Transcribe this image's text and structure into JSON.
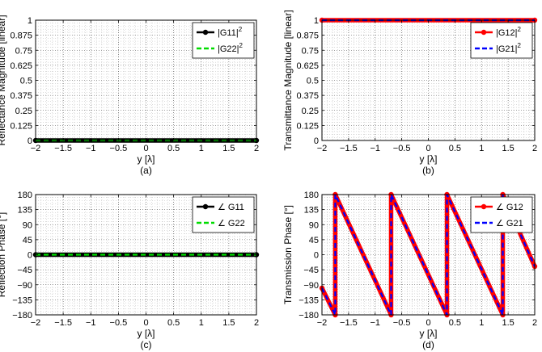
{
  "chart_data": [
    {
      "type": "line",
      "caption": "(a)",
      "xlabel": "y [λ]",
      "ylabel": "Reflectance Magnitude [linear]",
      "xlim": [
        -2,
        2
      ],
      "ylim": [
        0,
        1
      ],
      "xticks": [
        -2,
        -1.5,
        -1,
        -0.5,
        0,
        0.5,
        1,
        1.5,
        2
      ],
      "xtick_labels": [
        "−2",
        "−1.5",
        "−1",
        "−0.5",
        "0",
        "0.5",
        "1",
        "1.5",
        "2"
      ],
      "yticks": [
        0,
        0.125,
        0.25,
        0.375,
        0.5,
        0.625,
        0.75,
        0.875,
        1
      ],
      "ytick_labels": [
        "0",
        "0.125",
        "0.25",
        "0.375",
        "0.5",
        "0.625",
        "0.75",
        "0.875",
        "1"
      ],
      "grid": true,
      "legend_position": "top-right",
      "series": [
        {
          "name": "|G11|",
          "sup": "2",
          "color": "#000000",
          "style": "solid-markers",
          "x": [
            -2,
            2
          ],
          "y": [
            0,
            0
          ]
        },
        {
          "name": "|G22|",
          "sup": "2",
          "color": "#00dd00",
          "style": "dashed",
          "x": [
            -2,
            2
          ],
          "y": [
            0,
            0
          ]
        }
      ]
    },
    {
      "type": "line",
      "caption": "(b)",
      "xlabel": "y [λ]",
      "ylabel": "Transmittance Magnitude [linear]",
      "xlim": [
        -2,
        2
      ],
      "ylim": [
        0,
        1
      ],
      "xticks": [
        -2,
        -1.5,
        -1,
        -0.5,
        0,
        0.5,
        1,
        1.5,
        2
      ],
      "xtick_labels": [
        "−2",
        "−1.5",
        "−1",
        "−0.5",
        "0",
        "0.5",
        "1",
        "1.5",
        "2"
      ],
      "yticks": [
        0,
        0.125,
        0.25,
        0.375,
        0.5,
        0.625,
        0.75,
        0.875,
        1
      ],
      "ytick_labels": [
        "0",
        "0.125",
        "0.25",
        "0.375",
        "0.5",
        "0.625",
        "0.75",
        "0.875",
        "1"
      ],
      "grid": true,
      "legend_position": "top-right",
      "series": [
        {
          "name": "|G12|",
          "sup": "2",
          "color": "#ff0000",
          "style": "solid-markers",
          "x": [
            -2,
            2
          ],
          "y": [
            1,
            1
          ]
        },
        {
          "name": "|G21|",
          "sup": "2",
          "color": "#0000ff",
          "style": "dashed",
          "x": [
            -2,
            2
          ],
          "y": [
            1,
            1
          ]
        }
      ]
    },
    {
      "type": "line",
      "caption": "(c)",
      "xlabel": "y [λ]",
      "ylabel": "Reflection Phase [°]",
      "xlim": [
        -2,
        2
      ],
      "ylim": [
        -180,
        180
      ],
      "xticks": [
        -2,
        -1.5,
        -1,
        -0.5,
        0,
        0.5,
        1,
        1.5,
        2
      ],
      "xtick_labels": [
        "−2",
        "−1.5",
        "−1",
        "−0.5",
        "0",
        "0.5",
        "1",
        "1.5",
        "2"
      ],
      "yticks": [
        -180,
        -135,
        -90,
        -45,
        0,
        45,
        90,
        135,
        180
      ],
      "ytick_labels": [
        "−180",
        "−135",
        "−90",
        "−45",
        "0",
        "45",
        "90",
        "135",
        "180"
      ],
      "grid": true,
      "legend_position": "top-right",
      "series": [
        {
          "name": "∠ G11",
          "color": "#000000",
          "style": "solid-markers",
          "x": [
            -2,
            2
          ],
          "y": [
            0,
            0
          ]
        },
        {
          "name": "∠ G22",
          "color": "#00dd00",
          "style": "dashed",
          "x": [
            -2,
            2
          ],
          "y": [
            0,
            0
          ]
        }
      ]
    },
    {
      "type": "line",
      "caption": "(d)",
      "xlabel": "y [λ]",
      "ylabel": "Transmission Phase [°]",
      "xlim": [
        -2,
        2
      ],
      "ylim": [
        -180,
        180
      ],
      "xticks": [
        -2,
        -1.5,
        -1,
        -0.5,
        0,
        0.5,
        1,
        1.5,
        2
      ],
      "xtick_labels": [
        "−2",
        "−1.5",
        "−1",
        "−0.5",
        "0",
        "0.5",
        "1",
        "1.5",
        "2"
      ],
      "yticks": [
        -180,
        -135,
        -90,
        -45,
        0,
        45,
        90,
        135,
        180
      ],
      "ytick_labels": [
        "−180",
        "−135",
        "−90",
        "−45",
        "0",
        "45",
        "90",
        "135",
        "180"
      ],
      "grid": true,
      "legend_position": "top-right",
      "series": [
        {
          "name": "∠ G12",
          "color": "#ff0000",
          "style": "solid-markers",
          "x": [
            -2,
            -1.75,
            -1.75,
            -0.7,
            -0.7,
            0.35,
            0.35,
            1.4,
            1.4,
            2
          ],
          "y": [
            -100,
            -180,
            180,
            -180,
            180,
            -180,
            180,
            -180,
            180,
            -35
          ]
        },
        {
          "name": "∠ G21",
          "color": "#0000ff",
          "style": "dashed",
          "x": [
            -2,
            -1.75,
            -1.75,
            -0.7,
            -0.7,
            0.35,
            0.35,
            1.4,
            1.4,
            2
          ],
          "y": [
            -100,
            -180,
            180,
            -180,
            180,
            -180,
            180,
            -180,
            180,
            -35
          ]
        }
      ]
    }
  ]
}
